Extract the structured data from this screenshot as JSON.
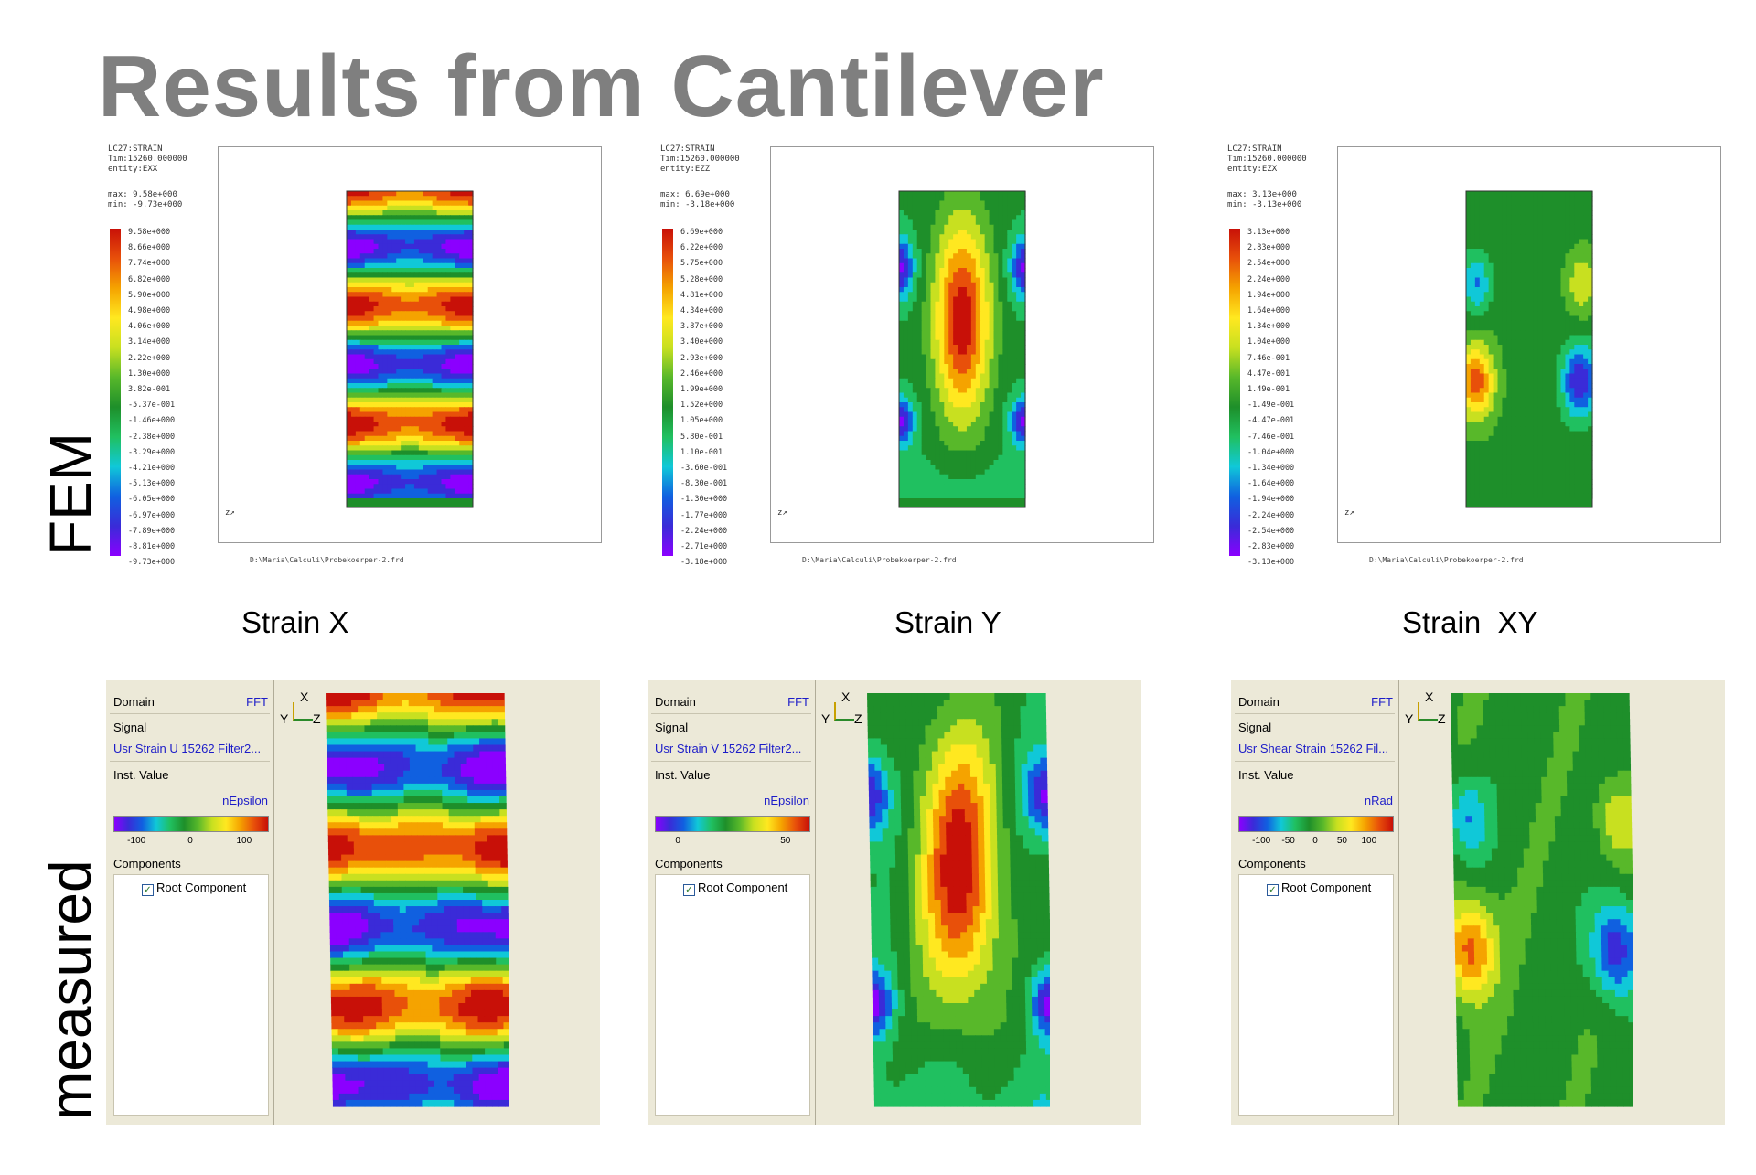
{
  "title": "Results from Cantilever",
  "row_labels": {
    "fem": "FEM",
    "measured": "measured"
  },
  "captions": [
    "Strain X",
    "Strain Y",
    "Strain  XY"
  ],
  "fem_panels": [
    {
      "header": "LC27:STRAIN\nTim:15260.000000\nentity:EXX",
      "maxmin": "max: 9.58e+000\nmin: -9.73e+000",
      "legend": [
        "9.58e+000",
        "8.66e+000",
        "7.74e+000",
        "6.82e+000",
        "5.90e+000",
        "4.98e+000",
        "4.06e+000",
        "3.14e+000",
        "2.22e+000",
        "1.30e+000",
        "3.82e-001",
        "-5.37e-001",
        "-1.46e+000",
        "-2.38e+000",
        "-3.29e+000",
        "-4.21e+000",
        "-5.13e+000",
        "-6.05e+000",
        "-6.97e+000",
        "-7.89e+000",
        "-8.81e+000",
        "-9.73e+000"
      ],
      "path": "D:\\Maria\\Calculi\\Probekoerper-2.frd",
      "axis": "z↗",
      "pattern": "x"
    },
    {
      "header": "LC27:STRAIN\nTim:15260.000000\nentity:EZZ",
      "maxmin": "max: 6.69e+000\nmin: -3.18e+000",
      "legend": [
        "6.69e+000",
        "6.22e+000",
        "5.75e+000",
        "5.28e+000",
        "4.81e+000",
        "4.34e+000",
        "3.87e+000",
        "3.40e+000",
        "2.93e+000",
        "2.46e+000",
        "1.99e+000",
        "1.52e+000",
        "1.05e+000",
        "5.80e-001",
        "1.10e-001",
        "-3.60e-001",
        "-8.30e-001",
        "-1.30e+000",
        "-1.77e+000",
        "-2.24e+000",
        "-2.71e+000",
        "-3.18e+000"
      ],
      "path": "D:\\Maria\\Calculi\\Probekoerper-2.frd",
      "axis": "z↗",
      "pattern": "y"
    },
    {
      "header": "LC27:STRAIN\nTim:15260.000000\nentity:EZX",
      "maxmin": "max: 3.13e+000\nmin: -3.13e+000",
      "legend": [
        "3.13e+000",
        "2.83e+000",
        "2.54e+000",
        "2.24e+000",
        "1.94e+000",
        "1.64e+000",
        "1.34e+000",
        "1.04e+000",
        "7.46e-001",
        "4.47e-001",
        "1.49e-001",
        "-1.49e-001",
        "-4.47e-001",
        "-7.46e-001",
        "-1.04e+000",
        "-1.34e+000",
        "-1.64e+000",
        "-1.94e+000",
        "-2.24e+000",
        "-2.54e+000",
        "-2.83e+000",
        "-3.13e+000"
      ],
      "path": "D:\\Maria\\Calculi\\Probekoerper-2.frd",
      "axis": "z↗",
      "pattern": "xy"
    }
  ],
  "measured_panels": [
    {
      "domain_label": "Domain",
      "domain_value": "FFT",
      "signal_label": "Signal",
      "signal_value": "Usr Strain U 15262 Filter2...",
      "inst_label": "Inst. Value",
      "unit": "nEpsilon",
      "ticks": [
        "-100",
        "0",
        "100"
      ],
      "components_label": "Components",
      "component_item": "Root Component",
      "axis_x": "X",
      "axis_y": "Y",
      "axis_z": "Z",
      "pattern": "x"
    },
    {
      "domain_label": "Domain",
      "domain_value": "FFT",
      "signal_label": "Signal",
      "signal_value": "Usr Strain V 15262 Filter2...",
      "inst_label": "Inst. Value",
      "unit": "nEpsilon",
      "ticks": [
        "0",
        "50"
      ],
      "components_label": "Components",
      "component_item": "Root Component",
      "axis_x": "X",
      "axis_y": "Y",
      "axis_z": "Z",
      "pattern": "y"
    },
    {
      "domain_label": "Domain",
      "domain_value": "FFT",
      "signal_label": "Signal",
      "signal_value": "Usr Shear Strain 15262 Fil...",
      "inst_label": "Inst. Value",
      "unit": "nRad",
      "ticks": [
        "-100",
        "-50",
        "0",
        "50",
        "100"
      ],
      "components_label": "Components",
      "component_item": "Root Component",
      "axis_x": "X",
      "axis_y": "Y",
      "axis_z": "Z",
      "pattern": "xy"
    }
  ],
  "colors": {
    "title": "#7f7f7f",
    "panel_bg": "#ece9d8",
    "link_blue": "#1c1cc8",
    "scale": [
      "#8b00ff",
      "#3a2bd8",
      "#1060e0",
      "#10c8d8",
      "#20c060",
      "#1e8f2a",
      "#58b82a",
      "#c8e020",
      "#ffe820",
      "#f5a300",
      "#e8500a",
      "#c81008"
    ]
  }
}
